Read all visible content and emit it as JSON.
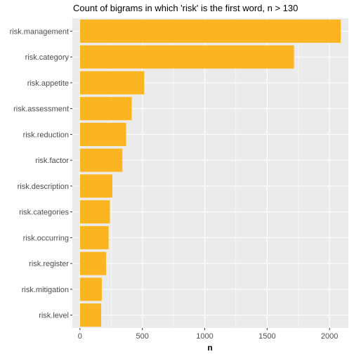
{
  "chart_data": {
    "type": "bar",
    "orientation": "horizontal",
    "title": "Count of bigrams in which 'risk' is the first word, n > 130",
    "xlabel": "n",
    "ylabel": "",
    "categories": [
      "risk.management",
      "risk.category",
      "risk.appetite",
      "risk.assessment",
      "risk.reduction",
      "risk.factor",
      "risk.description",
      "risk.categories",
      "risk.occurring",
      "risk.register",
      "risk.mitigation",
      "risk.level"
    ],
    "values": [
      2090,
      1715,
      515,
      415,
      370,
      340,
      260,
      240,
      230,
      210,
      175,
      170
    ],
    "xlim": [
      -61,
      2151
    ],
    "xticks": [
      0,
      500,
      1000,
      1500,
      2000
    ],
    "bar_color": "#FBB520",
    "panel_background": "#EBEBEB",
    "grid": true
  }
}
